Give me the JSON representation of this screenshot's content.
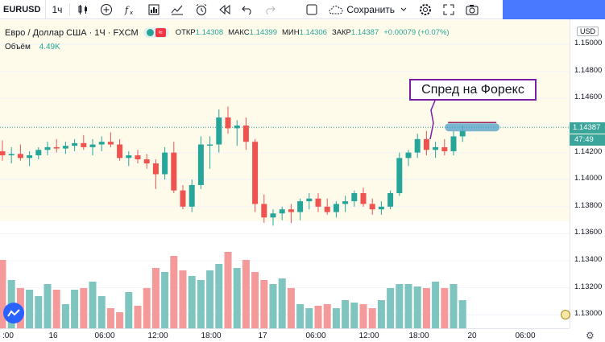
{
  "toolbar": {
    "symbol": "EURUSD",
    "interval": "1ч",
    "save_label": "Сохранить",
    "icons": [
      "candles-icon",
      "add-indicator-icon",
      "fx-icon",
      "templates-icon",
      "alert-icon",
      "replay-icon",
      "undo-icon",
      "redo-icon",
      "layout-icon",
      "cloud-icon",
      "chevron-down-icon",
      "settings-icon",
      "fullscreen-icon",
      "camera-icon"
    ]
  },
  "legend": {
    "title": "Евро / Доллар США · 1Ч · FXCM",
    "approx_badge": "≈",
    "open_label": "ОТКР",
    "open_value": "1.14308",
    "high_label": "МАКС",
    "high_value": "1.14399",
    "low_label": "МИН",
    "low_value": "1.14306",
    "close_label": "ЗАКР",
    "close_value": "1.14387",
    "change": "+0.00079 (+0.07%)",
    "volume_label": "Объём",
    "volume_value": "4.49K"
  },
  "price_scale": {
    "currency": "USD",
    "ticks": [
      "1.15000",
      "1.14800",
      "1.14600",
      "1.14200",
      "1.14000",
      "1.13800",
      "1.13600",
      "1.13400",
      "1.13200",
      "1.13000"
    ],
    "current_price": "1.14387",
    "countdown": "47:49"
  },
  "time_scale": {
    "ticks": [
      ":00",
      "16",
      "06:00",
      "12:00",
      "18:00",
      "17",
      "06:00",
      "12:00",
      "18:00",
      "20",
      "06:00"
    ]
  },
  "annotation": {
    "text": "Спред на Форекс"
  },
  "colors": {
    "up": "#26a69a",
    "down": "#ef5350",
    "vol_up": "#7fc5bf",
    "vol_down": "#f49a9a",
    "annotation": "#7a1fa2",
    "highlight": "#4f9fc7"
  },
  "chart_data": {
    "type": "candlestick",
    "ylim": [
      1.129,
      1.1518
    ],
    "current_price": 1.14387,
    "candles": [
      [
        1.1421,
        1.1429,
        1.1414,
        1.1418
      ],
      [
        1.1418,
        1.1424,
        1.1412,
        1.1419
      ],
      [
        1.1419,
        1.1426,
        1.1414,
        1.1416
      ],
      [
        1.1416,
        1.1421,
        1.141,
        1.1418
      ],
      [
        1.1418,
        1.1424,
        1.1415,
        1.1422
      ],
      [
        1.1422,
        1.1428,
        1.1418,
        1.1424
      ],
      [
        1.1424,
        1.143,
        1.142,
        1.1423
      ],
      [
        1.1423,
        1.1428,
        1.1419,
        1.1425
      ],
      [
        1.1425,
        1.143,
        1.1421,
        1.1427
      ],
      [
        1.1427,
        1.1433,
        1.1422,
        1.1424
      ],
      [
        1.1424,
        1.143,
        1.1418,
        1.1426
      ],
      [
        1.1426,
        1.1432,
        1.1421,
        1.1428
      ],
      [
        1.1428,
        1.1435,
        1.1424,
        1.1426
      ],
      [
        1.1426,
        1.143,
        1.1414,
        1.1416
      ],
      [
        1.1416,
        1.1421,
        1.141,
        1.1418
      ],
      [
        1.1418,
        1.1422,
        1.1412,
        1.1415
      ],
      [
        1.1415,
        1.1419,
        1.1408,
        1.1412
      ],
      [
        1.1412,
        1.1415,
        1.1393,
        1.1404
      ],
      [
        1.1404,
        1.1424,
        1.14,
        1.142
      ],
      [
        1.142,
        1.1428,
        1.139,
        1.1392
      ],
      [
        1.1392,
        1.1396,
        1.1378,
        1.138
      ],
      [
        1.138,
        1.14,
        1.1376,
        1.1396
      ],
      [
        1.1396,
        1.1432,
        1.1393,
        1.1426
      ],
      [
        1.1426,
        1.1432,
        1.1408,
        1.1426
      ],
      [
        1.1426,
        1.1452,
        1.142,
        1.1446
      ],
      [
        1.1446,
        1.1454,
        1.1434,
        1.1438
      ],
      [
        1.1438,
        1.1444,
        1.1425,
        1.144
      ],
      [
        1.144,
        1.1446,
        1.1422,
        1.1428
      ],
      [
        1.1428,
        1.143,
        1.1376,
        1.1382
      ],
      [
        1.1382,
        1.1389,
        1.1368,
        1.1372
      ],
      [
        1.1372,
        1.1378,
        1.1366,
        1.1375
      ],
      [
        1.1375,
        1.138,
        1.137,
        1.1378
      ],
      [
        1.1378,
        1.1382,
        1.1368,
        1.1376
      ],
      [
        1.1376,
        1.1386,
        1.137,
        1.1384
      ],
      [
        1.1384,
        1.139,
        1.1378,
        1.1386
      ],
      [
        1.1386,
        1.139,
        1.1376,
        1.138
      ],
      [
        1.138,
        1.1386,
        1.1374,
        1.1376
      ],
      [
        1.1376,
        1.1384,
        1.1372,
        1.1382
      ],
      [
        1.1382,
        1.1388,
        1.1376,
        1.1384
      ],
      [
        1.1384,
        1.1392,
        1.138,
        1.139
      ],
      [
        1.139,
        1.1394,
        1.138,
        1.1382
      ],
      [
        1.1382,
        1.1386,
        1.1374,
        1.1378
      ],
      [
        1.1378,
        1.1384,
        1.1374,
        1.138
      ],
      [
        1.138,
        1.1392,
        1.1378,
        1.139
      ],
      [
        1.139,
        1.142,
        1.1388,
        1.1416
      ],
      [
        1.1416,
        1.1422,
        1.141,
        1.142
      ],
      [
        1.142,
        1.1434,
        1.1416,
        1.143
      ],
      [
        1.143,
        1.1436,
        1.1418,
        1.1422
      ],
      [
        1.1422,
        1.1428,
        1.1416,
        1.1424
      ],
      [
        1.1424,
        1.143,
        1.1418,
        1.1421
      ],
      [
        1.1421,
        1.1436,
        1.1418,
        1.1432
      ],
      [
        1.1432,
        1.144,
        1.1428,
        1.1436
      ]
    ],
    "volumes": [
      85,
      60,
      50,
      48,
      40,
      55,
      48,
      30,
      48,
      50,
      58,
      40,
      25,
      20,
      45,
      28,
      50,
      75,
      70,
      90,
      72,
      65,
      60,
      72,
      80,
      95,
      75,
      85,
      70,
      60,
      55,
      62,
      50,
      30,
      25,
      28,
      30,
      25,
      35,
      32,
      30,
      25,
      35,
      50,
      55,
      55,
      52,
      50,
      58,
      50,
      55,
      35
    ]
  }
}
